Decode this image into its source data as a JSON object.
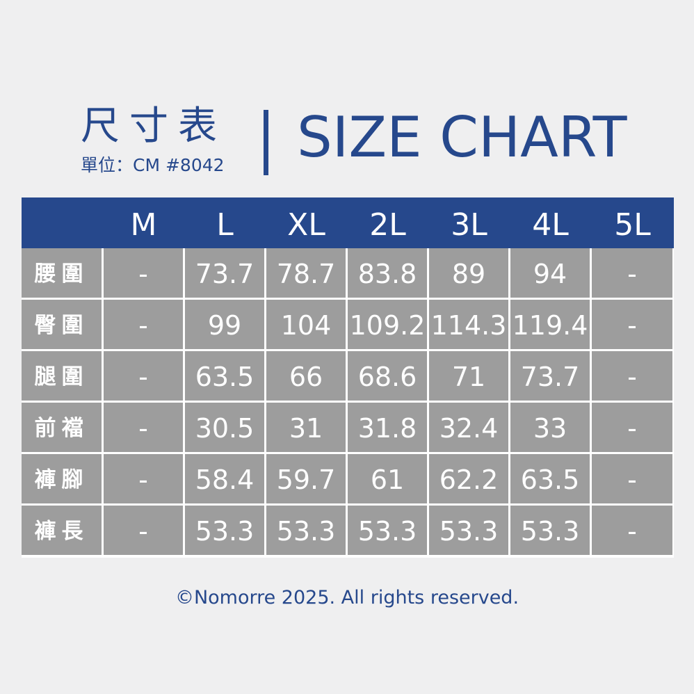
{
  "header": {
    "title_cn": "尺寸表",
    "subtitle": "單位：CM #8042",
    "title_en": "SIZE CHART"
  },
  "table": {
    "columns": [
      "",
      "M",
      "L",
      "XL",
      "2L",
      "3L",
      "4L",
      "5L"
    ],
    "rows": [
      {
        "label": "腰圍",
        "values": [
          "-",
          "73.7",
          "78.7",
          "83.8",
          "89",
          "94",
          "-"
        ]
      },
      {
        "label": "臀圍",
        "values": [
          "-",
          "99",
          "104",
          "109.2",
          "114.3",
          "119.4",
          "-"
        ]
      },
      {
        "label": "腿圍",
        "values": [
          "-",
          "63.5",
          "66",
          "68.6",
          "71",
          "73.7",
          "-"
        ]
      },
      {
        "label": "前襠",
        "values": [
          "-",
          "30.5",
          "31",
          "31.8",
          "32.4",
          "33",
          "-"
        ]
      },
      {
        "label": "褲腳",
        "values": [
          "-",
          "58.4",
          "59.7",
          "61",
          "62.2",
          "63.5",
          "-"
        ]
      },
      {
        "label": "褲長",
        "values": [
          "-",
          "53.3",
          "53.3",
          "53.3",
          "53.3",
          "53.3",
          "-"
        ]
      }
    ]
  },
  "footer": {
    "copyright": "©Nomorre 2025. All rights reserved."
  },
  "colors": {
    "brand_blue": "#26488c",
    "cell_gray": "#9d9d9d",
    "background": "#efeff0"
  }
}
